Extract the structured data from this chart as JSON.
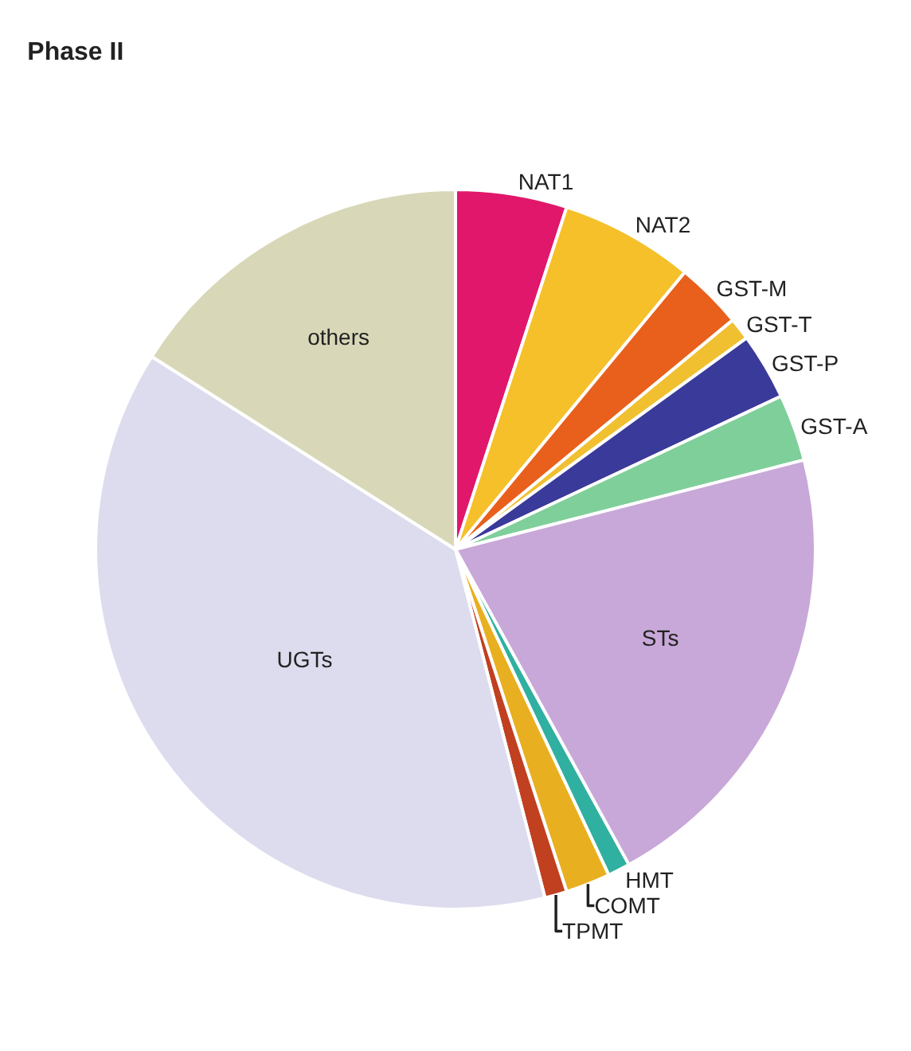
{
  "chart_data": {
    "type": "pie",
    "title": "Phase II",
    "categories": [
      "NAT1",
      "NAT2",
      "GST-M",
      "GST-T",
      "GST-P",
      "GST-A",
      "STs",
      "HMT",
      "COMT",
      "TPMT",
      "UGTs",
      "others"
    ],
    "values": [
      5,
      6,
      3,
      1,
      3,
      3,
      21,
      1,
      2,
      1,
      38,
      16
    ],
    "colors": [
      "#e0176b",
      "#f5c02a",
      "#e8601c",
      "#f0c030",
      "#3a3a9a",
      "#7fcf9a",
      "#c8a8d8",
      "#30b0a0",
      "#e8b020",
      "#c04020",
      "#dcdcee",
      "#d8d8b8"
    ],
    "legend": false
  }
}
